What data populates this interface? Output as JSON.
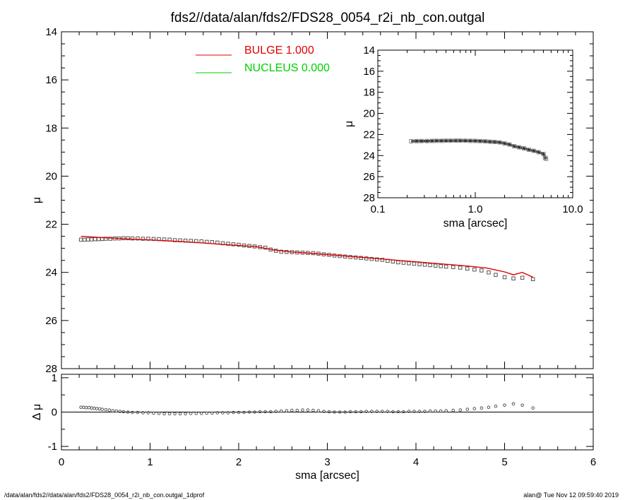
{
  "footer": {
    "left": "/data/alan/fds2//data/alan/fds2/FDS28_0054_r2i_nb_con.outgal_1dprof",
    "right": "alan@  Tue Nov 12 09:59:40 2019"
  },
  "chart_data": [
    {
      "id": "main",
      "type": "scatter",
      "title": "fds2//data/alan/fds2/FDS28_0054_r2i_nb_con.outgal",
      "xlabel": "",
      "ylabel": "μ",
      "xlim": [
        0,
        6
      ],
      "ylim": [
        28,
        14
      ],
      "x_ticks": [
        0,
        1,
        2,
        3,
        4,
        5,
        6
      ],
      "y_ticks": [
        14,
        16,
        18,
        20,
        22,
        24,
        26,
        28
      ],
      "y_tick_labels": [
        "14",
        "16",
        "18",
        "20",
        "22",
        "24",
        "26",
        "28"
      ],
      "legend": {
        "placement": "top-center",
        "entries": [
          {
            "text": "BULGE  1.000",
            "color": "#e00000"
          },
          {
            "text": "NUCLEUS  0.000",
            "color": "#00d000"
          }
        ]
      },
      "series": [
        {
          "name": "data",
          "kind": "points",
          "color": "#555555",
          "x": [
            0.22,
            0.26,
            0.3,
            0.34,
            0.38,
            0.42,
            0.46,
            0.5,
            0.55,
            0.6,
            0.65,
            0.7,
            0.75,
            0.8,
            0.86,
            0.92,
            0.98,
            1.04,
            1.1,
            1.16,
            1.22,
            1.28,
            1.34,
            1.4,
            1.46,
            1.52,
            1.58,
            1.64,
            1.7,
            1.76,
            1.82,
            1.88,
            1.94,
            2.0,
            2.06,
            2.12,
            2.18,
            2.24,
            2.3,
            2.36,
            2.42,
            2.48,
            2.54,
            2.6,
            2.66,
            2.72,
            2.78,
            2.84,
            2.9,
            2.96,
            3.02,
            3.08,
            3.14,
            3.2,
            3.26,
            3.32,
            3.38,
            3.44,
            3.5,
            3.56,
            3.62,
            3.68,
            3.74,
            3.8,
            3.86,
            3.92,
            3.98,
            4.04,
            4.1,
            4.16,
            4.22,
            4.28,
            4.34,
            4.42,
            4.5,
            4.58,
            4.66,
            4.74,
            4.82,
            4.9,
            5.0,
            5.1,
            5.2,
            5.32
          ],
          "y": [
            22.64,
            22.64,
            22.63,
            22.63,
            22.62,
            22.62,
            22.61,
            22.6,
            22.6,
            22.59,
            22.59,
            22.58,
            22.58,
            22.59,
            22.59,
            22.6,
            22.6,
            22.61,
            22.62,
            22.63,
            22.64,
            22.66,
            22.67,
            22.68,
            22.69,
            22.7,
            22.71,
            22.73,
            22.74,
            22.76,
            22.79,
            22.81,
            22.83,
            22.85,
            22.88,
            22.9,
            22.92,
            22.95,
            22.97,
            23.05,
            23.1,
            23.14,
            23.15,
            23.16,
            23.17,
            23.18,
            23.19,
            23.2,
            23.22,
            23.25,
            23.27,
            23.3,
            23.32,
            23.34,
            23.36,
            23.38,
            23.4,
            23.42,
            23.44,
            23.46,
            23.48,
            23.52,
            23.55,
            23.58,
            23.6,
            23.62,
            23.64,
            23.66,
            23.68,
            23.7,
            23.72,
            23.74,
            23.76,
            23.78,
            23.8,
            23.84,
            23.88,
            23.92,
            24.0,
            24.1,
            24.2,
            24.25,
            24.22,
            24.28
          ]
        },
        {
          "name": "BULGE",
          "kind": "line",
          "color": "#e00000",
          "x": [
            0.22,
            0.4,
            0.6,
            0.8,
            1.0,
            1.2,
            1.4,
            1.6,
            1.8,
            2.0,
            2.2,
            2.4,
            2.6,
            2.8,
            3.0,
            3.2,
            3.4,
            3.6,
            3.8,
            4.0,
            4.2,
            4.4,
            4.6,
            4.8,
            5.0,
            5.1,
            5.2,
            5.32
          ],
          "y": [
            22.5,
            22.54,
            22.58,
            22.62,
            22.65,
            22.69,
            22.73,
            22.78,
            22.83,
            22.88,
            22.93,
            23.07,
            23.15,
            23.2,
            23.26,
            23.32,
            23.38,
            23.44,
            23.5,
            23.56,
            23.62,
            23.68,
            23.74,
            23.82,
            23.98,
            24.1,
            24.0,
            24.2
          ]
        }
      ]
    },
    {
      "id": "inset",
      "type": "scatter",
      "xlabel": "sma [arcsec]",
      "ylabel": "μ",
      "x_scale": "log",
      "xlim": [
        0.1,
        10.0
      ],
      "ylim": [
        28,
        14
      ],
      "x_ticks": [
        0.1,
        1.0,
        10.0
      ],
      "x_tick_labels": [
        "0.1",
        "1.0",
        "10.0"
      ],
      "y_ticks": [
        14,
        16,
        18,
        20,
        22,
        24,
        26,
        28
      ],
      "y_tick_labels": [
        "14",
        "16",
        "18",
        "20",
        "22",
        "24",
        "26",
        "28"
      ],
      "series": [
        {
          "name": "data",
          "kind": "points+line",
          "color": "#333333",
          "x": [
            0.22,
            0.25,
            0.28,
            0.32,
            0.36,
            0.4,
            0.45,
            0.5,
            0.56,
            0.63,
            0.7,
            0.79,
            0.89,
            1.0,
            1.12,
            1.26,
            1.41,
            1.58,
            1.78,
            2.0,
            2.24,
            2.51,
            2.82,
            3.16,
            3.55,
            3.98,
            4.47,
            5.01,
            5.2,
            5.32
          ],
          "y": [
            22.64,
            22.63,
            22.62,
            22.62,
            22.61,
            22.6,
            22.6,
            22.59,
            22.59,
            22.58,
            22.58,
            22.59,
            22.6,
            22.61,
            22.63,
            22.65,
            22.68,
            22.71,
            22.75,
            22.85,
            22.95,
            23.12,
            23.22,
            23.32,
            23.45,
            23.55,
            23.68,
            23.85,
            24.2,
            24.3
          ]
        }
      ]
    },
    {
      "id": "residual",
      "type": "scatter",
      "xlabel": "sma [arcsec]",
      "ylabel": "Δ μ",
      "xlim": [
        0,
        6
      ],
      "ylim": [
        -1.1,
        1.1
      ],
      "x_ticks": [
        0,
        1,
        2,
        3,
        4,
        5,
        6
      ],
      "x_tick_labels": [
        "0",
        "1",
        "2",
        "3",
        "4",
        "5",
        "6"
      ],
      "y_ticks": [
        -1,
        0,
        1
      ],
      "y_tick_labels": [
        "-1",
        "0",
        "1"
      ],
      "zero_line": true,
      "series": [
        {
          "name": "residual",
          "kind": "points",
          "color": "#555555",
          "x": [
            0.22,
            0.25,
            0.28,
            0.31,
            0.34,
            0.37,
            0.4,
            0.43,
            0.46,
            0.5,
            0.54,
            0.58,
            0.62,
            0.66,
            0.7,
            0.75,
            0.8,
            0.86,
            0.92,
            0.98,
            1.04,
            1.1,
            1.16,
            1.22,
            1.28,
            1.34,
            1.4,
            1.46,
            1.52,
            1.58,
            1.64,
            1.7,
            1.76,
            1.82,
            1.88,
            1.94,
            2.0,
            2.06,
            2.12,
            2.18,
            2.24,
            2.3,
            2.36,
            2.42,
            2.48,
            2.54,
            2.6,
            2.66,
            2.72,
            2.78,
            2.84,
            2.9,
            2.96,
            3.02,
            3.08,
            3.14,
            3.2,
            3.26,
            3.32,
            3.38,
            3.44,
            3.5,
            3.56,
            3.62,
            3.68,
            3.74,
            3.8,
            3.86,
            3.92,
            3.98,
            4.04,
            4.1,
            4.16,
            4.22,
            4.28,
            4.34,
            4.42,
            4.5,
            4.58,
            4.66,
            4.74,
            4.82,
            4.9,
            5.0,
            5.1,
            5.2,
            5.32
          ],
          "y": [
            0.14,
            0.14,
            0.13,
            0.13,
            0.12,
            0.11,
            0.1,
            0.09,
            0.08,
            0.07,
            0.06,
            0.04,
            0.03,
            0.02,
            0.01,
            0.0,
            -0.01,
            -0.01,
            -0.02,
            -0.02,
            -0.03,
            -0.04,
            -0.05,
            -0.05,
            -0.05,
            -0.05,
            -0.05,
            -0.04,
            -0.04,
            -0.04,
            -0.03,
            -0.03,
            -0.02,
            -0.02,
            -0.02,
            -0.01,
            -0.01,
            -0.01,
            0.0,
            0.0,
            0.01,
            0.01,
            0.01,
            0.02,
            0.03,
            0.04,
            0.05,
            0.05,
            0.06,
            0.06,
            0.05,
            0.04,
            0.02,
            0.01,
            0.0,
            0.0,
            0.0,
            0.01,
            0.01,
            0.01,
            0.02,
            0.02,
            0.02,
            0.02,
            0.02,
            0.01,
            0.01,
            0.01,
            0.02,
            0.02,
            0.02,
            0.02,
            0.03,
            0.03,
            0.03,
            0.04,
            0.05,
            0.06,
            0.08,
            0.1,
            0.12,
            0.14,
            0.17,
            0.2,
            0.24,
            0.2,
            0.12
          ]
        }
      ]
    }
  ]
}
